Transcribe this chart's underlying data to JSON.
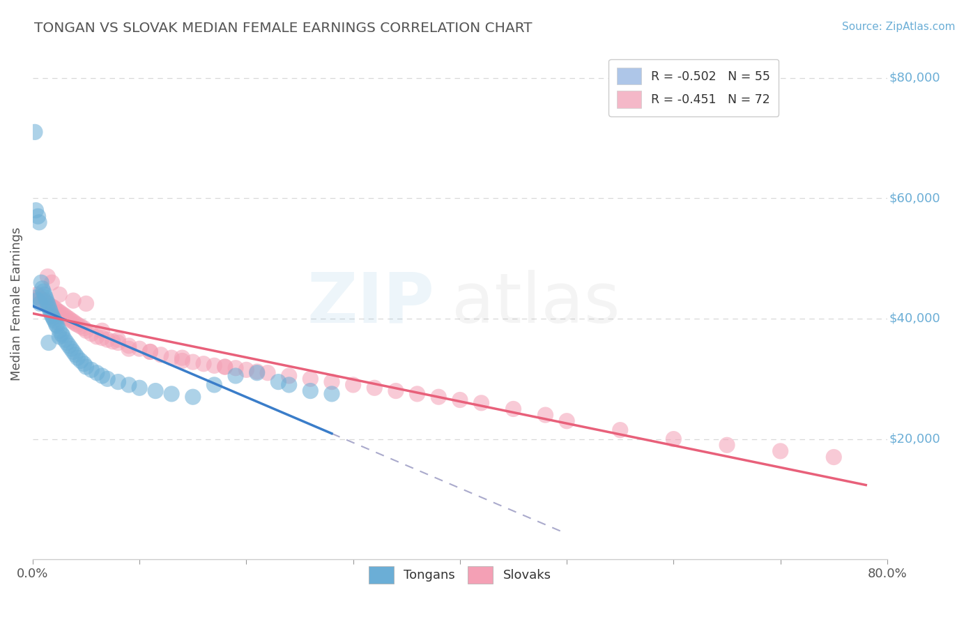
{
  "title": "TONGAN VS SLOVAK MEDIAN FEMALE EARNINGS CORRELATION CHART",
  "source": "Source: ZipAtlas.com",
  "ylabel": "Median Female Earnings",
  "xlim": [
    0.0,
    0.8
  ],
  "ylim": [
    0,
    85000
  ],
  "yticks": [
    20000,
    40000,
    60000,
    80000
  ],
  "xtick_positions": [
    0.0,
    0.1,
    0.2,
    0.3,
    0.4,
    0.5,
    0.6,
    0.7,
    0.8
  ],
  "xtick_labels_shown": {
    "0.0": "0.0%",
    "0.80": "80.0%"
  },
  "legend_entries": [
    {
      "label": "R = -0.502   N = 55",
      "color": "#aec6e8"
    },
    {
      "label": "R = -0.451   N = 72",
      "color": "#f4b8c8"
    }
  ],
  "legend_labels_bottom": [
    "Tongans",
    "Slovaks"
  ],
  "tonga_color": "#6baed6",
  "slovak_color": "#f4a0b5",
  "tonga_line_color": "#3a7dc9",
  "slovak_line_color": "#e8607a",
  "dashed_line_color": "#aaaacc",
  "background_color": "#ffffff",
  "grid_color": "#d8d8d8",
  "title_color": "#555555",
  "source_color": "#6baed6",
  "yaxis_label_color": "#6baed6",
  "tongans_x": [
    0.002,
    0.003,
    0.005,
    0.006,
    0.008,
    0.009,
    0.01,
    0.011,
    0.012,
    0.013,
    0.014,
    0.015,
    0.016,
    0.017,
    0.018,
    0.019,
    0.02,
    0.021,
    0.022,
    0.023,
    0.025,
    0.027,
    0.028,
    0.03,
    0.032,
    0.034,
    0.036,
    0.038,
    0.04,
    0.042,
    0.045,
    0.048,
    0.05,
    0.055,
    0.06,
    0.065,
    0.07,
    0.08,
    0.09,
    0.1,
    0.115,
    0.13,
    0.15,
    0.17,
    0.19,
    0.21,
    0.24,
    0.26,
    0.002,
    0.004,
    0.007,
    0.015,
    0.025,
    0.23,
    0.28
  ],
  "tongans_y": [
    71000,
    58000,
    57000,
    56000,
    46000,
    45000,
    44500,
    44000,
    43500,
    43000,
    42500,
    42000,
    41500,
    41000,
    40500,
    40200,
    39800,
    39500,
    39000,
    38800,
    38000,
    37500,
    37200,
    36500,
    36000,
    35500,
    35000,
    34500,
    34000,
    33500,
    33000,
    32500,
    32000,
    31500,
    31000,
    30500,
    30000,
    29500,
    29000,
    28500,
    28000,
    27500,
    27000,
    29000,
    30500,
    31000,
    29000,
    28000,
    43500,
    43000,
    42500,
    36000,
    37000,
    29500,
    27500
  ],
  "slovaks_x": [
    0.004,
    0.006,
    0.008,
    0.01,
    0.012,
    0.014,
    0.016,
    0.018,
    0.02,
    0.022,
    0.024,
    0.026,
    0.028,
    0.03,
    0.032,
    0.034,
    0.036,
    0.038,
    0.04,
    0.042,
    0.045,
    0.048,
    0.05,
    0.055,
    0.06,
    0.065,
    0.07,
    0.075,
    0.08,
    0.09,
    0.1,
    0.11,
    0.12,
    0.13,
    0.14,
    0.15,
    0.16,
    0.17,
    0.18,
    0.19,
    0.2,
    0.21,
    0.22,
    0.24,
    0.26,
    0.28,
    0.3,
    0.32,
    0.34,
    0.36,
    0.38,
    0.4,
    0.42,
    0.45,
    0.48,
    0.5,
    0.55,
    0.6,
    0.65,
    0.7,
    0.75,
    0.014,
    0.018,
    0.025,
    0.038,
    0.05,
    0.065,
    0.08,
    0.11,
    0.14,
    0.18,
    0.09
  ],
  "slovaks_y": [
    44000,
    43500,
    43200,
    43000,
    42800,
    42500,
    42200,
    42000,
    41800,
    41500,
    41200,
    41000,
    40700,
    40500,
    40200,
    40000,
    39700,
    39500,
    39200,
    39000,
    38700,
    38400,
    38000,
    37500,
    37000,
    36800,
    36500,
    36200,
    36000,
    35500,
    35000,
    34500,
    34000,
    33500,
    33000,
    32800,
    32500,
    32200,
    32000,
    31800,
    31500,
    31200,
    31000,
    30500,
    30000,
    29500,
    29000,
    28500,
    28000,
    27500,
    27000,
    26500,
    26000,
    25000,
    24000,
    23000,
    21500,
    20000,
    19000,
    18000,
    17000,
    47000,
    46000,
    44000,
    43000,
    42500,
    38000,
    36500,
    34500,
    33500,
    32000,
    35000
  ]
}
